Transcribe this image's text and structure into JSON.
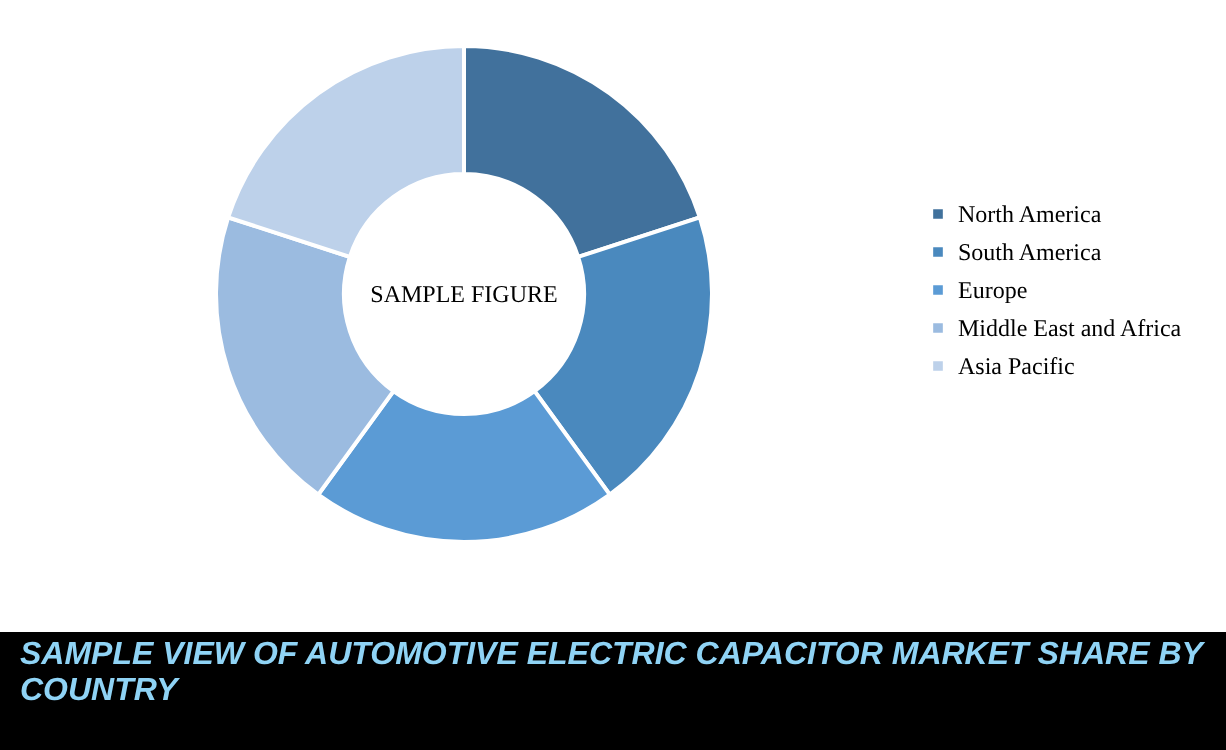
{
  "chart_data": {
    "type": "donut",
    "title": "SAMPLE VIEW OF AUTOMOTIVE ELECTRIC CAPACITOR MARKET SHARE BY COUNTRY",
    "annotations": [
      "SAMPLE FIGURE"
    ],
    "categories": [
      "North America",
      "South America",
      "Europe",
      "Middle East and Africa",
      "Asia Pacific"
    ],
    "values": [
      20,
      20,
      20,
      20,
      20
    ],
    "colors": [
      "#41719c",
      "#4a89be",
      "#5b9bd5",
      "#9bbbe0",
      "#bdd1ea"
    ],
    "legend": "right"
  }
}
